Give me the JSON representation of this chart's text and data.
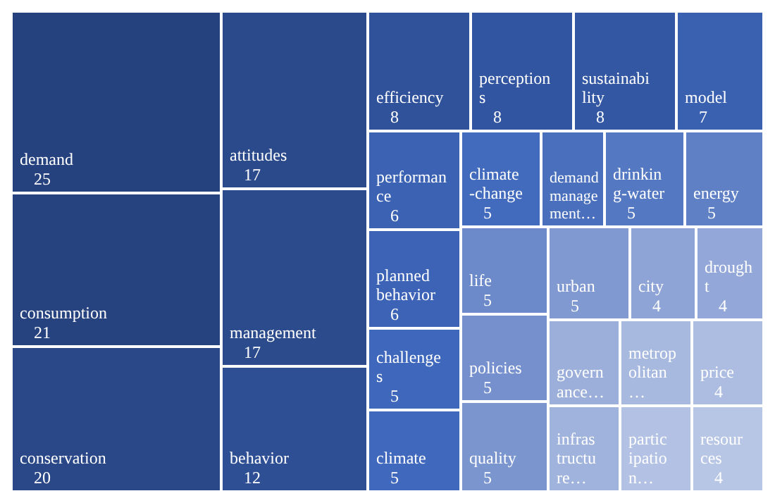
{
  "chart_data": {
    "type": "other",
    "categories": [
      "demand",
      "consumption",
      "conservation",
      "attitudes",
      "management",
      "behavior",
      "efficiency",
      "perceptions",
      "sustainability",
      "model",
      "performance",
      "planned behavior",
      "challenges",
      "climate",
      "climate-change",
      "demand management…",
      "drinking-water",
      "energy",
      "life",
      "policies",
      "quality",
      "urban",
      "city",
      "drought",
      "governance…",
      "infrastructure…",
      "metropolitan…",
      "price",
      "participation…",
      "resources"
    ],
    "values": [
      25,
      21,
      20,
      17,
      17,
      12,
      8,
      8,
      8,
      7,
      6,
      6,
      5,
      5,
      5,
      null,
      5,
      5,
      5,
      5,
      5,
      5,
      4,
      4,
      null,
      null,
      null,
      4,
      null,
      4
    ],
    "colors": [
      "#26427e",
      "#27437f",
      "#2a4888",
      "#2b4a8b",
      "#2c4b8c",
      "#2f4f94",
      "#30529a",
      "#3155a0",
      "#3357a2",
      "#3a60b0",
      "#3b62b3",
      "#3c63b5",
      "#3f68bc",
      "#4069bd",
      "#426bbd",
      "#4a70bd",
      "#5478c1",
      "#5f80c5",
      "#6c8ac9",
      "#7590cc",
      "#7b95cf",
      "#8199d1",
      "#8ea4d6",
      "#93a8d8",
      "#9cafdb",
      "#a0b3dd",
      "#a8b9e0",
      "#adbde2",
      "#b3c2e4",
      "#b8c6e6"
    ],
    "data_labels": true
  }
}
